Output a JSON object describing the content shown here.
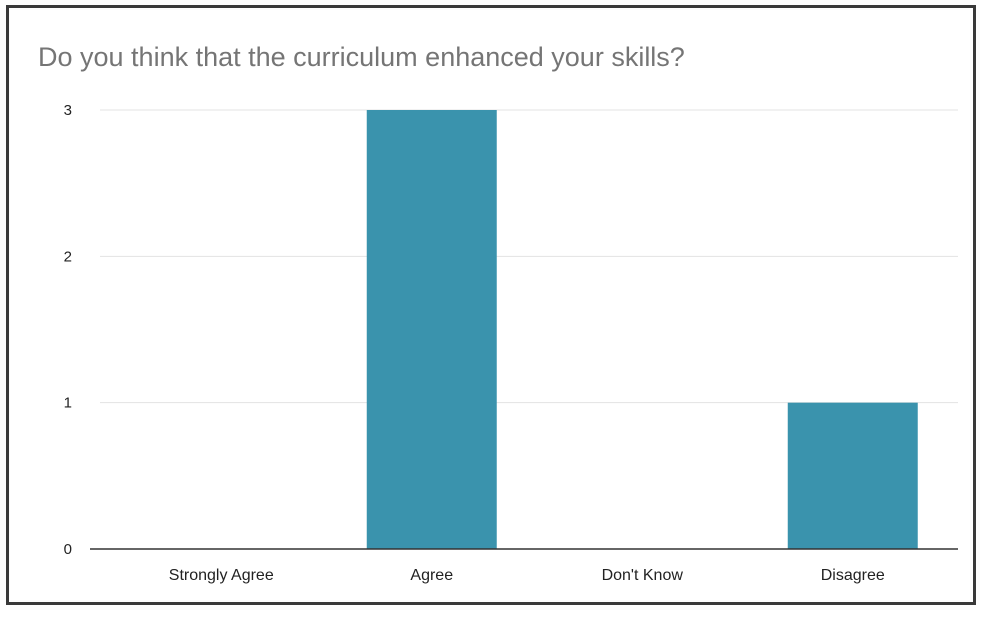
{
  "chart_data": {
    "type": "bar",
    "title": "Do you think that the curriculum enhanced your skills?",
    "categories": [
      "Strongly Agree",
      "Agree",
      "Don't Know",
      "Disagree"
    ],
    "values": [
      0,
      3,
      0,
      1
    ],
    "ylim": [
      0,
      3
    ],
    "yticks": [
      0,
      1,
      2,
      3
    ],
    "grid": true,
    "bar_color": "#3a93ad",
    "legend": "none"
  }
}
